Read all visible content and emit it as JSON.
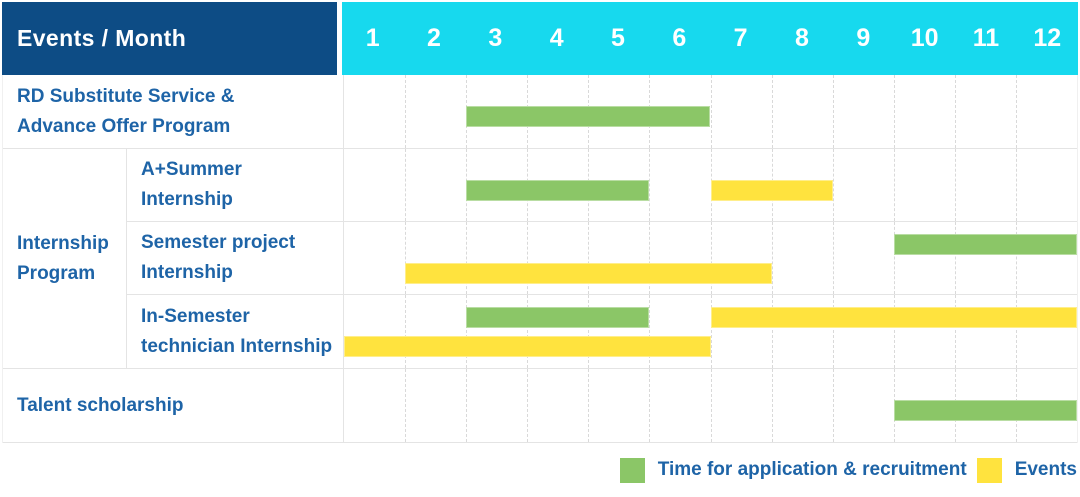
{
  "colors": {
    "navy": "#0d4c85",
    "cyan": "#17d9ee",
    "green": "#8bc667",
    "yellow": "#ffe33e",
    "label_blue": "#1e64a7"
  },
  "header": {
    "title": "Events / Month",
    "months": [
      "1",
      "2",
      "3",
      "4",
      "5",
      "6",
      "7",
      "8",
      "9",
      "10",
      "11",
      "12"
    ]
  },
  "sections": [
    {
      "rows": [
        {
          "label_lines": [
            "RD Substitute Service &",
            "Advance Offer Program"
          ],
          "lines": [
            [
              {
                "color": "green",
                "start": 3,
                "end": 7
              }
            ]
          ]
        }
      ]
    },
    {
      "group_lines": [
        "Internship",
        "Program"
      ],
      "rows": [
        {
          "label_lines": [
            "A+Summer",
            "Internship"
          ],
          "lines": [
            [
              {
                "color": "green",
                "start": 3,
                "end": 6
              },
              {
                "color": "yellow",
                "start": 7,
                "end": 9
              }
            ]
          ]
        },
        {
          "label_lines": [
            "Semester project",
            "Internship"
          ],
          "lines": [
            [
              {
                "color": "green",
                "start": 10,
                "end": 13
              }
            ],
            [
              {
                "color": "yellow",
                "start": 2,
                "end": 8
              }
            ]
          ]
        },
        {
          "label_lines": [
            "In-Semester",
            "technician Internship"
          ],
          "lines": [
            [
              {
                "color": "green",
                "start": 3,
                "end": 6
              },
              {
                "color": "yellow",
                "start": 7,
                "end": 13
              }
            ],
            [
              {
                "color": "yellow",
                "start": 1,
                "end": 7
              }
            ]
          ]
        }
      ]
    },
    {
      "rows": [
        {
          "label_lines": [
            "Talent scholarship"
          ],
          "lines": [
            [
              {
                "color": "green",
                "start": 10,
                "end": 13
              }
            ]
          ]
        }
      ]
    }
  ],
  "legend": [
    {
      "swatch": "green",
      "label": "Time for application & recruitment"
    },
    {
      "swatch": "yellow",
      "label": "Events"
    }
  ],
  "chart_data": {
    "type": "bar",
    "subtype": "gantt-schedule",
    "title": "Events / Month",
    "x_axis": {
      "label": "Month",
      "ticks": [
        1,
        2,
        3,
        4,
        5,
        6,
        7,
        8,
        9,
        10,
        11,
        12
      ],
      "range": [
        1,
        12
      ]
    },
    "grid": true,
    "legend_position": "bottom-right",
    "series_names": [
      "Time for application & recruitment",
      "Events"
    ],
    "tasks": [
      {
        "name": "RD Substitute Service & Advance Offer Program",
        "group": null,
        "bars": [
          {
            "series": "Time for application & recruitment",
            "start_month": 3,
            "end_month": 6
          }
        ]
      },
      {
        "name": "A+Summer Internship",
        "group": "Internship Program",
        "bars": [
          {
            "series": "Time for application & recruitment",
            "start_month": 3,
            "end_month": 5
          },
          {
            "series": "Events",
            "start_month": 7,
            "end_month": 8
          }
        ]
      },
      {
        "name": "Semester project Internship",
        "group": "Internship Program",
        "bars": [
          {
            "series": "Time for application & recruitment",
            "start_month": 10,
            "end_month": 12
          },
          {
            "series": "Events",
            "start_month": 2,
            "end_month": 7
          }
        ]
      },
      {
        "name": "In-Semester technician Internship",
        "group": "Internship Program",
        "bars": [
          {
            "series": "Time for application & recruitment",
            "start_month": 3,
            "end_month": 5
          },
          {
            "series": "Events",
            "start_month": 7,
            "end_month": 12
          },
          {
            "series": "Events",
            "start_month": 1,
            "end_month": 6
          }
        ]
      },
      {
        "name": "Talent scholarship",
        "group": null,
        "bars": [
          {
            "series": "Time for application & recruitment",
            "start_month": 10,
            "end_month": 12
          }
        ]
      }
    ]
  }
}
